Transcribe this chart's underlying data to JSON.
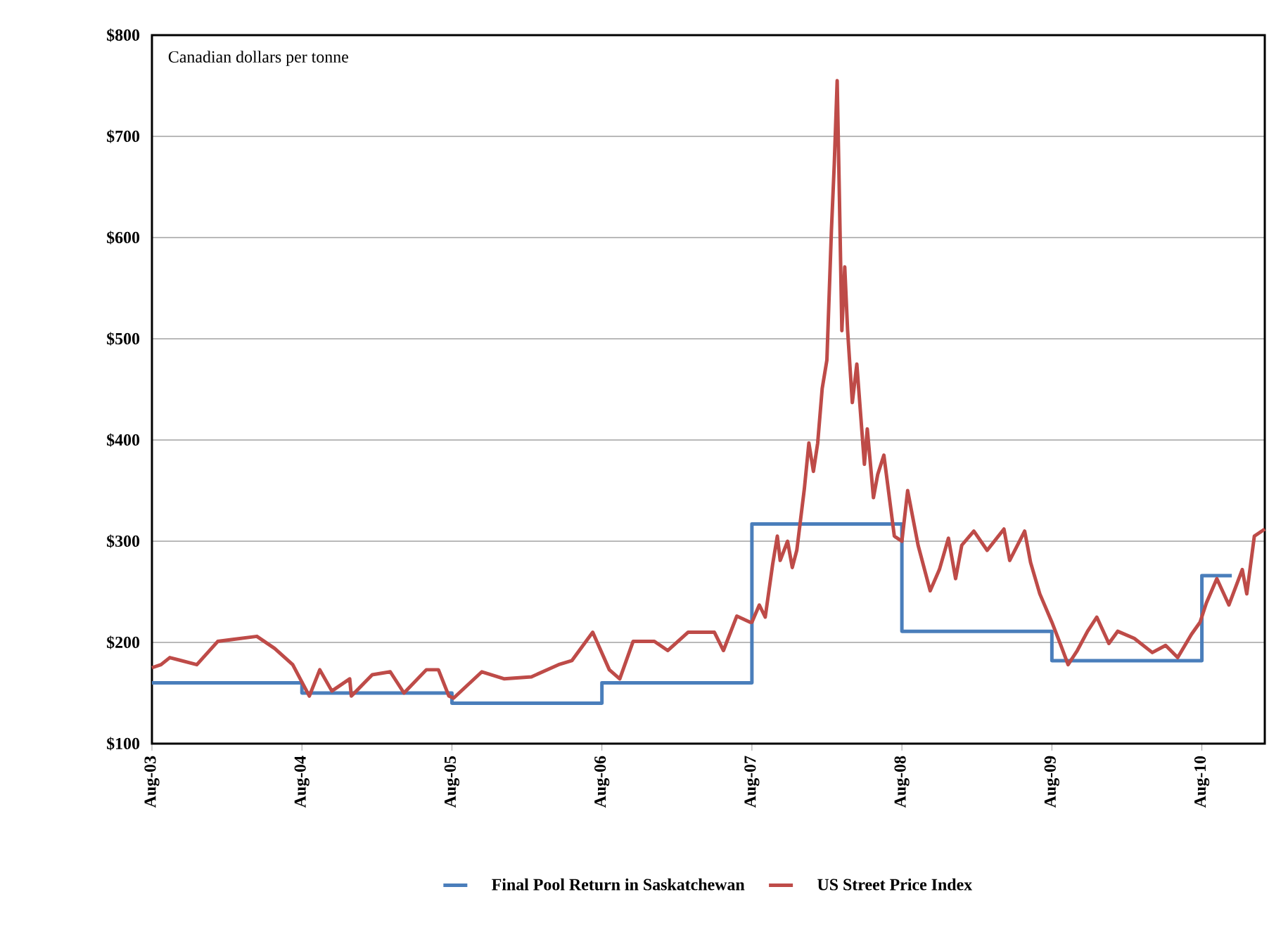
{
  "chart_data": {
    "type": "step",
    "annotations": [
      "Canadian dollars per tonne"
    ],
    "xlim": [
      "2003-08-01",
      "2011-01-02"
    ],
    "xticks": [
      {
        "value": "2003-08",
        "label": "Aug-03"
      },
      {
        "value": "2004-08",
        "label": "Aug-04"
      },
      {
        "value": "2005-08",
        "label": "Aug-05"
      },
      {
        "value": "2006-08",
        "label": "Aug-06"
      },
      {
        "value": "2007-08",
        "label": "Aug-07"
      },
      {
        "value": "2008-08",
        "label": "Aug-08"
      },
      {
        "value": "2009-08",
        "label": "Aug-09"
      },
      {
        "value": "2010-08",
        "label": "Aug-10"
      }
    ],
    "ylim": [
      100,
      800
    ],
    "yticks": [
      {
        "value": 100,
        "label": "$100"
      },
      {
        "value": 200,
        "label": "$200"
      },
      {
        "value": 300,
        "label": "$300"
      },
      {
        "value": 400,
        "label": "$400"
      },
      {
        "value": 500,
        "label": "$500"
      },
      {
        "value": 600,
        "label": "$600"
      },
      {
        "value": 700,
        "label": "$700"
      },
      {
        "value": 800,
        "label": "$800"
      }
    ],
    "grid": "y",
    "legend": "bottom",
    "series": [
      {
        "name": "Final Pool Return in Saskatchewan",
        "color": "#4a7ebb",
        "x": [
          "2003-08-01",
          "2004-08-01",
          "2005-08-01",
          "2006-08-01",
          "2007-08-01",
          "2008-08-01",
          "2009-08-01",
          "2010-08-01",
          "2010-10-13"
        ],
        "values": [
          160,
          150,
          140,
          160,
          317,
          211,
          182,
          266,
          266
        ]
      },
      {
        "name": "US Street Price Index",
        "type": "line",
        "color": "#be4b48",
        "x": [
          "2003-08-01",
          "2003-08-23",
          "2003-09-14",
          "2003-11-19",
          "2004-01-09",
          "2004-02-15",
          "2004-04-13",
          "2004-05-26",
          "2004-07-09",
          "2004-08-19",
          "2004-09-14",
          "2004-10-13",
          "2004-11-26",
          "2004-11-30",
          "2005-01-20",
          "2005-03-03",
          "2005-04-06",
          "2005-05-30",
          "2005-06-29",
          "2005-07-24",
          "2005-08-05",
          "2005-10-13",
          "2005-12-07",
          "2006-02-12",
          "2006-04-17",
          "2006-05-19",
          "2006-07-09",
          "2006-08-19",
          "2006-09-14",
          "2006-10-16",
          "2006-12-07",
          "2007-01-09",
          "2007-02-28",
          "2007-05-01",
          "2007-05-23",
          "2007-06-25",
          "2007-07-27",
          "2007-08-01",
          "2007-08-19",
          "2007-09-03",
          "2007-09-21",
          "2007-10-02",
          "2007-10-09",
          "2007-10-27",
          "2007-11-08",
          "2007-11-19",
          "2007-12-07",
          "2007-12-18",
          "2007-12-29",
          "2008-01-09",
          "2008-01-20",
          "2008-02-01",
          "2008-02-12",
          "2008-02-19",
          "2008-02-26",
          "2008-03-01",
          "2008-03-07",
          "2008-03-14",
          "2008-03-21",
          "2008-04-02",
          "2008-04-13",
          "2008-05-01",
          "2008-05-08",
          "2008-05-23",
          "2008-06-03",
          "2008-06-18",
          "2008-07-13",
          "2008-08-01",
          "2008-08-15",
          "2008-09-10",
          "2008-10-09",
          "2008-11-01",
          "2008-11-23",
          "2008-12-10",
          "2008-12-25",
          "2009-01-24",
          "2009-02-26",
          "2009-04-06",
          "2009-04-20",
          "2009-05-26",
          "2009-06-10",
          "2009-07-02",
          "2009-08-01",
          "2009-08-23",
          "2009-09-10",
          "2009-10-02",
          "2009-10-27",
          "2009-11-19",
          "2009-12-18",
          "2010-01-09",
          "2010-02-19",
          "2010-04-02",
          "2010-05-04",
          "2010-06-03",
          "2010-07-06",
          "2010-07-27",
          "2010-08-12",
          "2010-09-07",
          "2010-10-06",
          "2010-11-08",
          "2010-11-19",
          "2010-12-07",
          "2011-01-02"
        ],
        "values": [
          175,
          178,
          185,
          178,
          201,
          203,
          206,
          194,
          178,
          147,
          173,
          152,
          164,
          147,
          168,
          171,
          150,
          173,
          173,
          147,
          145,
          171,
          164,
          166,
          178,
          182,
          210,
          173,
          164,
          201,
          201,
          192,
          210,
          210,
          192,
          226,
          220,
          220,
          237,
          225,
          277,
          305,
          281,
          300,
          274,
          291,
          352,
          397,
          369,
          397,
          451,
          479,
          607,
          673,
          755,
          640,
          508,
          571,
          508,
          437,
          475,
          376,
          411,
          343,
          366,
          385,
          305,
          300,
          350,
          296,
          251,
          272,
          303,
          263,
          296,
          310,
          291,
          312,
          281,
          310,
          279,
          248,
          220,
          197,
          178,
          192,
          211,
          225,
          199,
          211,
          204,
          190,
          197,
          185,
          208,
          220,
          239,
          263,
          237,
          272,
          248,
          305,
          312
        ]
      }
    ]
  }
}
